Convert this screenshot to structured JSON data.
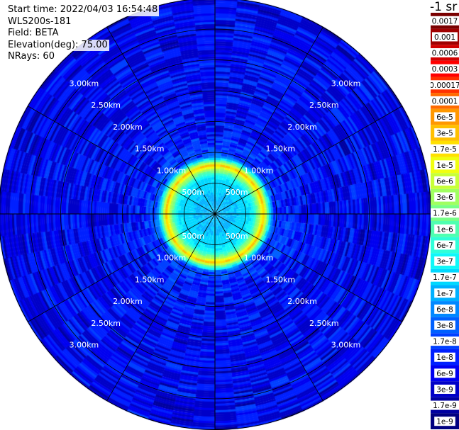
{
  "header": {
    "start_time": "Start time: 2022/04/03 16:54:48",
    "instrument": "WLS200s-181",
    "field": "Field: BETA",
    "elevation": "Elevation(deg): 75.00",
    "nrays": "NRays: 60"
  },
  "colorbar": {
    "unit_label": "-1 sr",
    "labels": [
      "0.0017",
      "0.001",
      "0.0006",
      "0.0003",
      "0.00017",
      "0.0001",
      "6e-5",
      "3e-5",
      "1.7e-5",
      "1e-5",
      "6e-6",
      "3e-6",
      "1.7e-6",
      "1e-6",
      "6e-7",
      "3e-7",
      "1.7e-7",
      "1e-7",
      "6e-8",
      "3e-8",
      "1.7e-8",
      "1e-8",
      "6e-9",
      "3e-9",
      "1.7e-9",
      "1e-9"
    ],
    "colors": [
      "#7a0000",
      "#a00000",
      "#d10000",
      "#ff0000",
      "#ff3000",
      "#ff6a00",
      "#ff9800",
      "#ffc000",
      "#ffe000",
      "#f0ff10",
      "#c8ff38",
      "#a0ff60",
      "#78ff88",
      "#50ffb0",
      "#30ffd8",
      "#10f8f8",
      "#00d8ff",
      "#00b0ff",
      "#0088ff",
      "#0060ff",
      "#0040ff",
      "#0020ff",
      "#0000f0",
      "#0000c8",
      "#0000a0",
      "#000080"
    ]
  },
  "chart_data": {
    "type": "heatmap",
    "projection": "polar PPI",
    "field": "BETA",
    "range_rings_km": [
      0.5,
      1.0,
      1.5,
      2.0,
      2.5,
      3.0
    ],
    "ring_labels": [
      "500m",
      "1.00km",
      "1.50km",
      "2.00km",
      "2.50km",
      "3.00km"
    ],
    "max_range_km": 3.5,
    "spoke_interval_deg": 30,
    "profile_log10_beta": [
      {
        "range_km": 0.05,
        "value": -6.8
      },
      {
        "range_km": 0.3,
        "value": -6.8
      },
      {
        "range_km": 0.5,
        "value": -6.6
      },
      {
        "range_km": 0.6,
        "value": -6.5
      },
      {
        "range_km": 0.7,
        "value": -5.6
      },
      {
        "range_km": 0.75,
        "value": -5.0
      },
      {
        "range_km": 0.78,
        "value": -4.4
      },
      {
        "range_km": 0.83,
        "value": -5.2
      },
      {
        "range_km": 0.88,
        "value": -6.3
      },
      {
        "range_km": 0.95,
        "value": -7.6
      },
      {
        "range_km": 1.2,
        "value": -7.9
      },
      {
        "range_km": 1.5,
        "value": -8.0
      },
      {
        "range_km": 2.0,
        "value": -8.1
      },
      {
        "range_km": 2.5,
        "value": -8.1
      },
      {
        "range_km": 3.0,
        "value": -8.1
      },
      {
        "range_km": 3.5,
        "value": -8.2
      }
    ],
    "colorbar_range": [
      "1e-9",
      "0.0017"
    ],
    "colorbar_scale": "log",
    "grid": true
  }
}
